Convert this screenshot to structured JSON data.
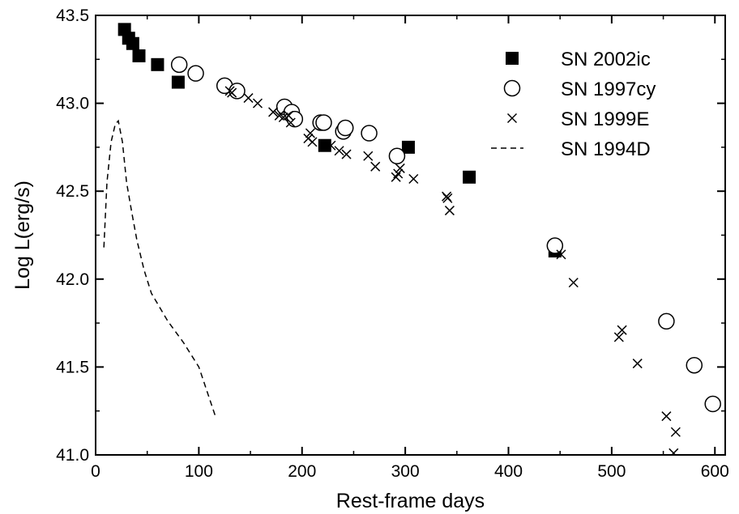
{
  "chart_data": {
    "type": "scatter",
    "xlabel": "Rest-frame days",
    "ylabel": "Log L(erg/s)",
    "xlim": [
      0,
      610
    ],
    "ylim": [
      41.0,
      43.5
    ],
    "x_ticks": [
      "0",
      "100",
      "200",
      "300",
      "400",
      "500",
      "600"
    ],
    "y_ticks": [
      "41.0",
      "41.5",
      "42.0",
      "42.5",
      "43.0",
      "43.5"
    ],
    "grid": false,
    "legend_position": "top-right",
    "series": [
      {
        "name": "SN 2002ic",
        "marker": "filled-square",
        "points": [
          [
            28,
            43.42
          ],
          [
            32,
            43.37
          ],
          [
            36,
            43.34
          ],
          [
            42,
            43.27
          ],
          [
            60,
            43.22
          ],
          [
            80,
            43.12
          ],
          [
            222,
            42.76
          ],
          [
            303,
            42.75
          ],
          [
            362,
            42.58
          ],
          [
            445,
            42.16
          ]
        ]
      },
      {
        "name": "SN 1997cy",
        "marker": "open-circle",
        "points": [
          [
            81,
            43.22
          ],
          [
            97,
            43.17
          ],
          [
            125,
            43.1
          ],
          [
            137,
            43.07
          ],
          [
            183,
            42.98
          ],
          [
            190,
            42.95
          ],
          [
            193,
            42.91
          ],
          [
            218,
            42.89
          ],
          [
            221,
            42.89
          ],
          [
            240,
            42.84
          ],
          [
            242,
            42.86
          ],
          [
            265,
            42.83
          ],
          [
            292,
            42.7
          ],
          [
            445,
            42.19
          ],
          [
            553,
            41.76
          ],
          [
            580,
            41.51
          ],
          [
            598,
            41.29
          ]
        ]
      },
      {
        "name": "SN 1999E",
        "marker": "x",
        "points": [
          [
            130,
            43.07
          ],
          [
            132,
            43.06
          ],
          [
            148,
            43.03
          ],
          [
            157,
            43.0
          ],
          [
            172,
            42.95
          ],
          [
            178,
            42.93
          ],
          [
            182,
            42.92
          ],
          [
            187,
            42.93
          ],
          [
            189,
            42.89
          ],
          [
            206,
            42.8
          ],
          [
            208,
            42.83
          ],
          [
            210,
            42.78
          ],
          [
            228,
            42.76
          ],
          [
            236,
            42.73
          ],
          [
            243,
            42.71
          ],
          [
            264,
            42.7
          ],
          [
            271,
            42.64
          ],
          [
            291,
            42.58
          ],
          [
            293,
            42.6
          ],
          [
            295,
            42.63
          ],
          [
            308,
            42.57
          ],
          [
            340,
            42.47
          ],
          [
            341,
            42.46
          ],
          [
            343,
            42.39
          ],
          [
            451,
            42.14
          ],
          [
            463,
            41.98
          ],
          [
            507,
            41.67
          ],
          [
            510,
            41.71
          ],
          [
            525,
            41.52
          ],
          [
            553,
            41.22
          ],
          [
            562,
            41.13
          ],
          [
            560,
            41.01
          ]
        ]
      },
      {
        "name": "SN 1994D",
        "marker": "dashed-line",
        "points": [
          [
            8,
            42.18
          ],
          [
            11,
            42.55
          ],
          [
            15,
            42.78
          ],
          [
            19,
            42.88
          ],
          [
            22,
            42.9
          ],
          [
            26,
            42.78
          ],
          [
            30,
            42.55
          ],
          [
            35,
            42.38
          ],
          [
            40,
            42.22
          ],
          [
            47,
            42.05
          ],
          [
            54,
            41.92
          ],
          [
            62,
            41.84
          ],
          [
            70,
            41.76
          ],
          [
            85,
            41.64
          ],
          [
            100,
            41.5
          ],
          [
            116,
            41.22
          ]
        ]
      }
    ]
  }
}
